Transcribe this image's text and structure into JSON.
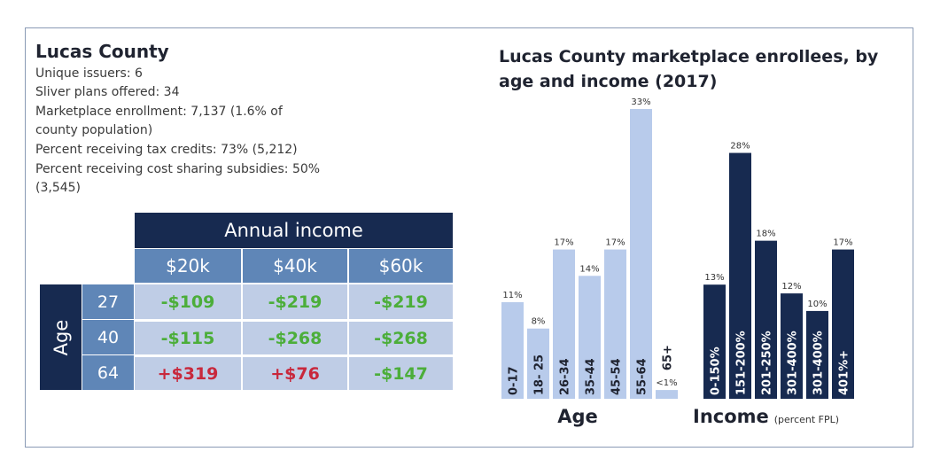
{
  "county": {
    "title": "Lucas County",
    "stats": [
      "Unique issuers: 6",
      "Sliver plans offered: 34",
      "Marketplace enrollment: 7,137 (1.6% of",
      "county population)",
      "Percent receiving tax credits: 73% (5,212)",
      "Percent receiving cost sharing subsidies: 50%",
      "(3,545)"
    ]
  },
  "table": {
    "header": "Annual income",
    "side_label": "Age",
    "columns": [
      "$20k",
      "$40k",
      "$60k"
    ],
    "rows": [
      {
        "age": "27",
        "values": [
          "-$109",
          "-$219",
          "-$219"
        ],
        "signs": [
          "neg",
          "neg",
          "neg"
        ]
      },
      {
        "age": "40",
        "values": [
          "-$115",
          "-$268",
          "-$268"
        ],
        "signs": [
          "neg",
          "neg",
          "neg"
        ]
      },
      {
        "age": "64",
        "values": [
          "+$319",
          "+$76",
          "-$147"
        ],
        "signs": [
          "pos",
          "pos",
          "neg"
        ]
      }
    ]
  },
  "colors": {
    "age_bar": "#b8cbeb",
    "income_bar": "#172a50",
    "negative": "#4cae3a",
    "positive": "#c8283c"
  },
  "chart_data": [
    {
      "type": "bar",
      "title": "Lucas County marketplace enrollees, by age and income (2017)",
      "xlabel": "Age",
      "categories": [
        "0-17",
        "18- 25",
        "26-34",
        "35-44",
        "45-54",
        "55-64",
        "65+"
      ],
      "values": [
        11,
        8,
        17,
        14,
        17,
        33,
        1
      ],
      "data_labels": [
        "11%",
        "8%",
        "17%",
        "14%",
        "17%",
        "33%",
        "<1%"
      ],
      "ylim": [
        0,
        33
      ]
    },
    {
      "type": "bar",
      "xlabel": "Income",
      "xlabel_note": "(percent FPL)",
      "categories": [
        "0-150%",
        "151-200%",
        "201-250%",
        "301-400%",
        "301-400%",
        "401%+"
      ],
      "values": [
        13,
        28,
        18,
        12,
        10,
        17
      ],
      "data_labels": [
        "13%",
        "28%",
        "18%",
        "12%",
        "10%",
        "17%"
      ],
      "ylim": [
        0,
        33
      ]
    }
  ]
}
